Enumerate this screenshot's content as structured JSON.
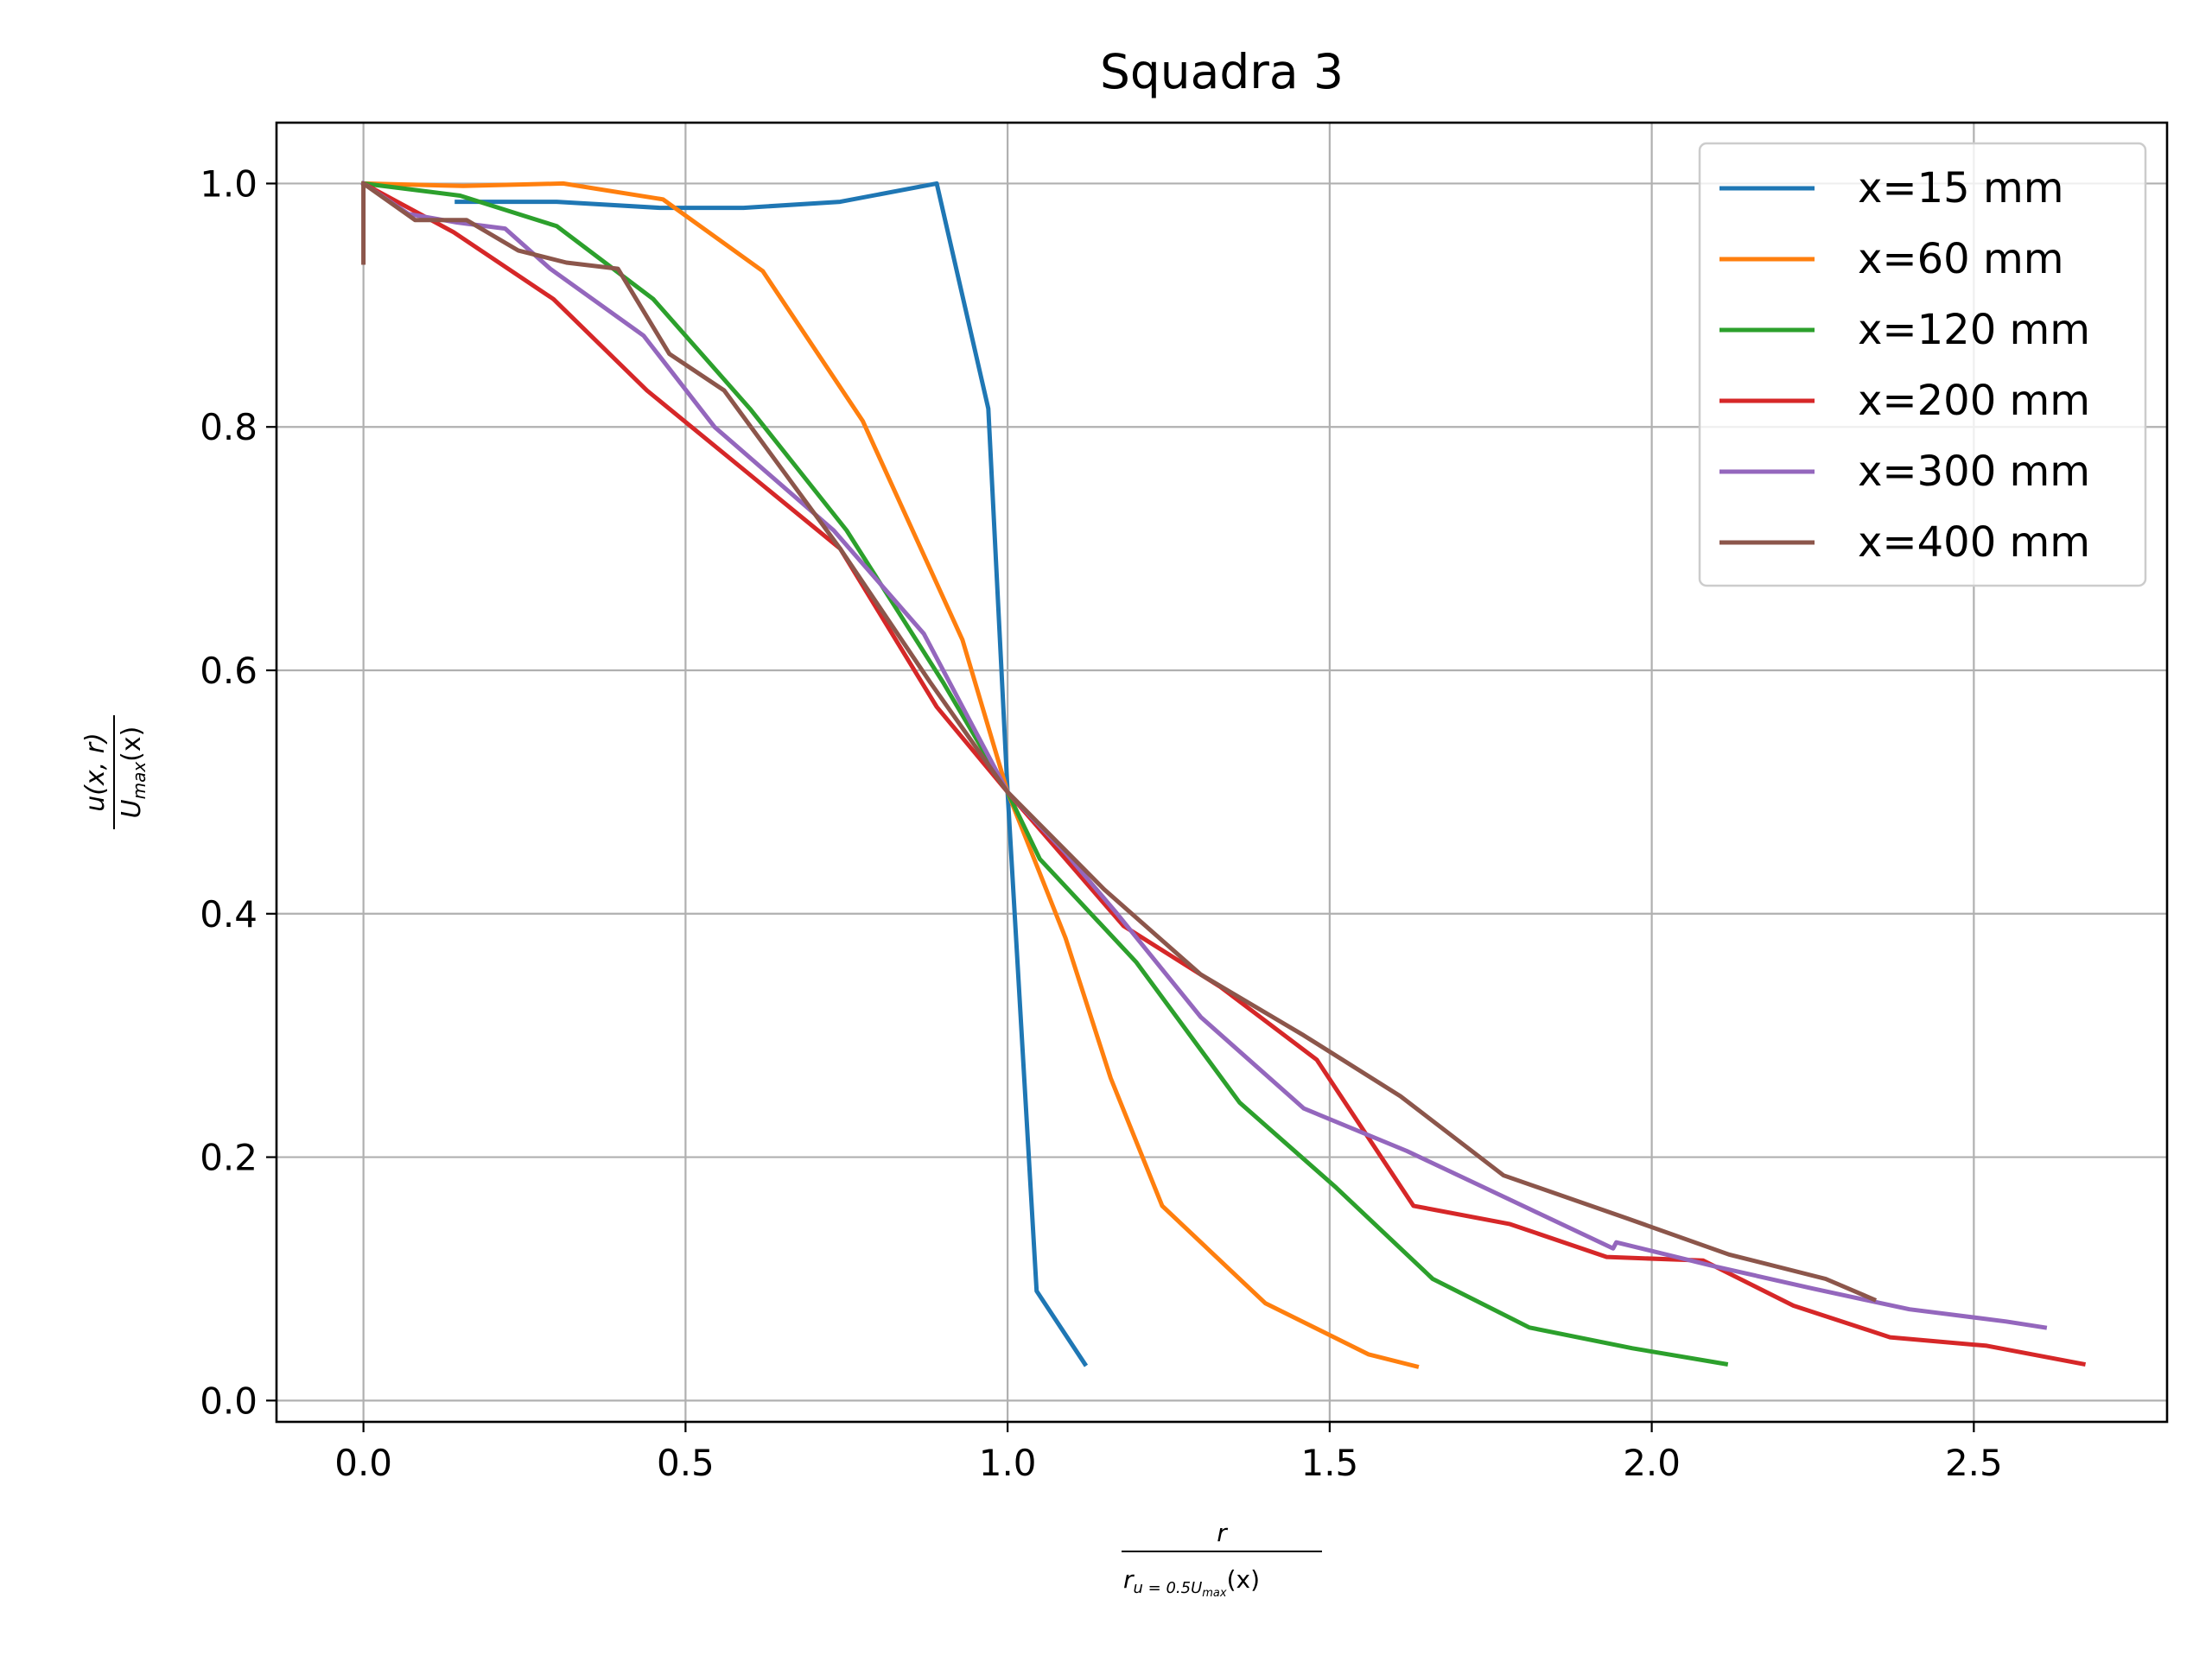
{
  "chart_data": {
    "type": "line",
    "title": "Squadra 3",
    "xlabel": {
      "num": "r",
      "den_main": "r",
      "den_sub": "u = 0.5U",
      "den_subsub": "max",
      "den_tail": "(x)"
    },
    "ylabel": {
      "num": "u(x, r)",
      "den_main": "U",
      "den_sub": "max",
      "den_tail": "(x)"
    },
    "xlim": [
      -0.135,
      2.8
    ],
    "ylim": [
      -0.0175,
      1.05
    ],
    "xticks": [
      0.0,
      0.5,
      1.0,
      1.5,
      2.0,
      2.5
    ],
    "xtick_labels": [
      "0.0",
      "0.5",
      "1.0",
      "1.5",
      "2.0",
      "2.5"
    ],
    "yticks": [
      0.0,
      0.2,
      0.4,
      0.6,
      0.8,
      1.0
    ],
    "ytick_labels": [
      "0.0",
      "0.2",
      "0.4",
      "0.6",
      "0.8",
      "1.0"
    ],
    "grid": true,
    "legend_position": "top-right",
    "series": [
      {
        "name": "x=15 mm",
        "color": "#1f77b4",
        "x": [
          0.145,
          0.3,
          0.46,
          0.59,
          0.74,
          0.89,
          0.97,
          1.0,
          1.045,
          1.12
        ],
        "y": [
          0.985,
          0.985,
          0.98,
          0.98,
          0.985,
          1.0,
          0.815,
          0.5,
          0.09,
          0.03
        ]
      },
      {
        "name": "x=60 mm",
        "color": "#ff7f0e",
        "x": [
          0.0,
          0.155,
          0.31,
          0.465,
          0.62,
          0.775,
          0.93,
          1.0,
          1.09,
          1.16,
          1.24,
          1.4,
          1.56,
          1.635
        ],
        "y": [
          1.0,
          0.998,
          1.0,
          0.987,
          0.928,
          0.805,
          0.625,
          0.5,
          0.38,
          0.265,
          0.16,
          0.08,
          0.038,
          0.028
        ]
      },
      {
        "name": "x=120 mm",
        "color": "#2ca02c",
        "x": [
          0.0,
          0.15,
          0.3,
          0.45,
          0.6,
          0.75,
          0.9,
          1.0,
          1.05,
          1.2,
          1.36,
          1.51,
          1.66,
          1.81,
          1.97,
          2.115
        ],
        "y": [
          1.0,
          0.99,
          0.965,
          0.905,
          0.815,
          0.715,
          0.59,
          0.5,
          0.445,
          0.36,
          0.245,
          0.175,
          0.1,
          0.06,
          0.043,
          0.03
        ]
      },
      {
        "name": "x=200 mm",
        "color": "#d62728",
        "x": [
          0.0,
          0.14,
          0.295,
          0.44,
          0.59,
          0.74,
          0.89,
          1.0,
          1.18,
          1.33,
          1.48,
          1.63,
          1.78,
          1.93,
          2.08,
          2.22,
          2.37,
          2.52,
          2.67
        ],
        "y": [
          1.0,
          0.96,
          0.905,
          0.83,
          0.765,
          0.7,
          0.57,
          0.5,
          0.39,
          0.34,
          0.28,
          0.16,
          0.145,
          0.118,
          0.115,
          0.078,
          0.052,
          0.045,
          0.03
        ]
      },
      {
        "name": "x=300 mm",
        "color": "#9467bd",
        "x": [
          0.0,
          0.07,
          0.145,
          0.22,
          0.29,
          0.435,
          0.545,
          0.73,
          0.87,
          1.0,
          1.09,
          1.17,
          1.3,
          1.46,
          1.62,
          1.78,
          1.94,
          1.945,
          2.1,
          2.25,
          2.4,
          2.55,
          2.61
        ],
        "y": [
          1.0,
          0.975,
          0.968,
          0.963,
          0.93,
          0.875,
          0.8,
          0.715,
          0.63,
          0.5,
          0.45,
          0.4,
          0.315,
          0.24,
          0.205,
          0.165,
          0.125,
          0.13,
          0.11,
          0.092,
          0.075,
          0.065,
          0.06
        ]
      },
      {
        "name": "x=400 mm",
        "color": "#8c564b",
        "x": [
          0.0,
          0.0,
          0.08,
          0.16,
          0.24,
          0.315,
          0.395,
          0.475,
          0.56,
          0.74,
          0.88,
          1.0,
          1.15,
          1.3,
          1.46,
          1.61,
          1.77,
          1.96,
          2.12,
          2.27,
          2.345
        ],
        "y": [
          0.935,
          1.0,
          0.97,
          0.97,
          0.945,
          0.935,
          0.93,
          0.86,
          0.83,
          0.7,
          0.59,
          0.5,
          0.42,
          0.35,
          0.3,
          0.25,
          0.185,
          0.15,
          0.12,
          0.1,
          0.083
        ]
      }
    ]
  }
}
